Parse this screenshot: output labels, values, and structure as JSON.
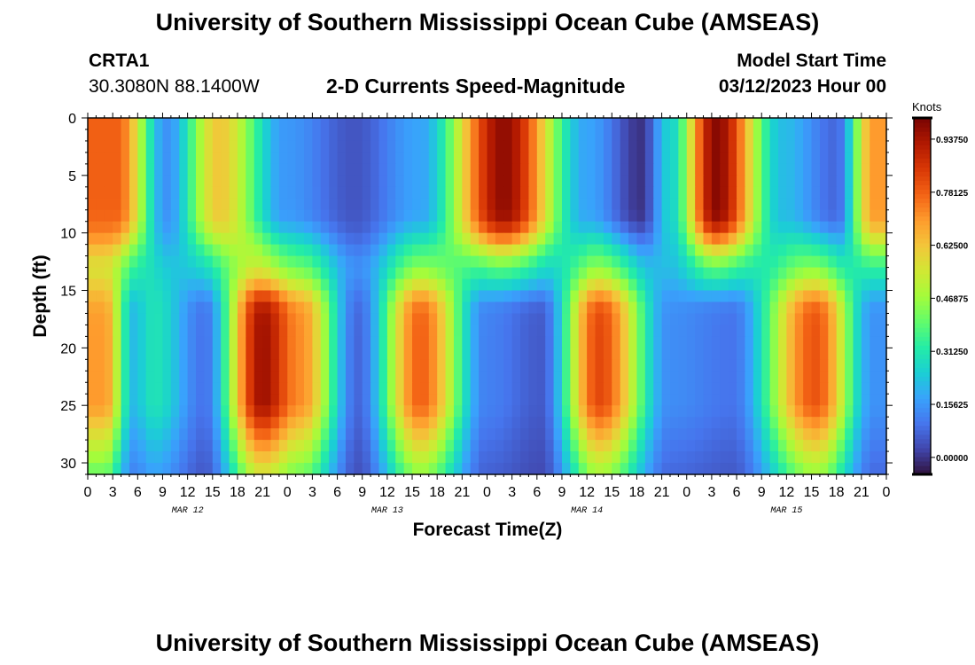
{
  "header": {
    "title": "University of Southern Mississippi Ocean Cube (AMSEAS)",
    "station_id": "CRTA1",
    "station_coords": "30.3080N  88.1400W",
    "subtitle": "2-D Currents Speed-Magnitude",
    "model_start_label": "Model Start Time",
    "model_start_value": "03/12/2023 Hour 00"
  },
  "footer": {
    "title": "University of Southern Mississippi Ocean Cube (AMSEAS)"
  },
  "chart_data": {
    "type": "heatmap",
    "title": "2-D Currents Speed-Magnitude",
    "xlabel": "Forecast Time(Z)",
    "ylabel": "Depth (ft)",
    "colorbar_label": "Knots",
    "x_range_hours": [
      0,
      96
    ],
    "y_range_ft": [
      0,
      31
    ],
    "y_inverted": true,
    "x_tick_labels": [
      "0",
      "3",
      "6",
      "9",
      "12",
      "15",
      "18",
      "21",
      "0",
      "3",
      "6",
      "9",
      "12",
      "15",
      "18",
      "21",
      "0",
      "3",
      "6",
      "9",
      "12",
      "15",
      "18",
      "21",
      "0",
      "3",
      "6",
      "9",
      "12",
      "15",
      "18",
      "21",
      "0"
    ],
    "y_ticks": [
      0,
      5,
      10,
      15,
      20,
      25,
      30
    ],
    "y_tick_labels": [
      "0",
      "5",
      "10",
      "15",
      "20",
      "25",
      "30"
    ],
    "date_labels": [
      {
        "hour": 12,
        "label": "MAR 12"
      },
      {
        "hour": 36,
        "label": "MAR 13"
      },
      {
        "hour": 60,
        "label": "MAR 14"
      },
      {
        "hour": 84,
        "label": "MAR 15"
      }
    ],
    "colorbar_ticks": [
      0.0,
      0.15625,
      0.3125,
      0.46875,
      0.625,
      0.78125,
      0.9375
    ],
    "colorbar_tick_labels": [
      "0.00000",
      "0.15625",
      "0.31250",
      "0.46875",
      "0.62500",
      "0.78125",
      "0.93750"
    ],
    "colorbar_range": [
      -0.05,
      1.0
    ],
    "colormap": [
      "#30123b",
      "#4145ab",
      "#4675ed",
      "#39a2fc",
      "#1bcfd4",
      "#24eca6",
      "#61fc6c",
      "#a4fc3b",
      "#d1e834",
      "#f3c63a",
      "#fe9b2d",
      "#f36315",
      "#d93806",
      "#b11901",
      "#7a0403"
    ],
    "surface_layer": [
      {
        "t0": 0,
        "t1": 7,
        "v": 0.78
      },
      {
        "t0": 7,
        "t1": 12,
        "v": 0.15
      },
      {
        "t0": 12,
        "t1": 19.5,
        "v": 0.62
      },
      {
        "t0": 19.5,
        "t1": 28,
        "v": 0.16
      },
      {
        "t0": 28,
        "t1": 36,
        "v": 0.05
      },
      {
        "t0": 36,
        "t1": 44,
        "v": 0.18
      },
      {
        "t0": 44,
        "t1": 56,
        "v": 0.97
      },
      {
        "t0": 56,
        "t1": 64,
        "v": 0.18
      },
      {
        "t0": 64,
        "t1": 69,
        "v": 0.0
      },
      {
        "t0": 69,
        "t1": 71,
        "v": 0.26
      },
      {
        "t0": 71,
        "t1": 80,
        "v": 0.98
      },
      {
        "t0": 80,
        "t1": 87,
        "v": 0.22
      },
      {
        "t0": 87,
        "t1": 93,
        "v": 0.08
      },
      {
        "t0": 93,
        "t1": 96,
        "v": 0.7
      }
    ],
    "deep_layer": [
      {
        "t0": 0,
        "t1": 4,
        "v": 0.7
      },
      {
        "t0": 4,
        "t1": 7,
        "v": 0.22
      },
      {
        "t0": 7,
        "t1": 9,
        "v": 0.3
      },
      {
        "t0": 9,
        "t1": 19,
        "v": 0.1
      },
      {
        "t0": 19,
        "t1": 23,
        "v": 0.95
      },
      {
        "t0": 23,
        "t1": 28,
        "v": 0.72
      },
      {
        "t0": 28,
        "t1": 37,
        "v": 0.08
      },
      {
        "t0": 37,
        "t1": 43,
        "v": 0.78
      },
      {
        "t0": 43,
        "t1": 53,
        "v": 0.12
      },
      {
        "t0": 53,
        "t1": 56,
        "v": 0.06
      },
      {
        "t0": 56,
        "t1": 67,
        "v": 0.82
      },
      {
        "t0": 67,
        "t1": 73,
        "v": 0.14
      },
      {
        "t0": 73,
        "t1": 82,
        "v": 0.1
      },
      {
        "t0": 82,
        "t1": 93,
        "v": 0.8
      },
      {
        "t0": 93,
        "t1": 96,
        "v": 0.15
      }
    ]
  }
}
